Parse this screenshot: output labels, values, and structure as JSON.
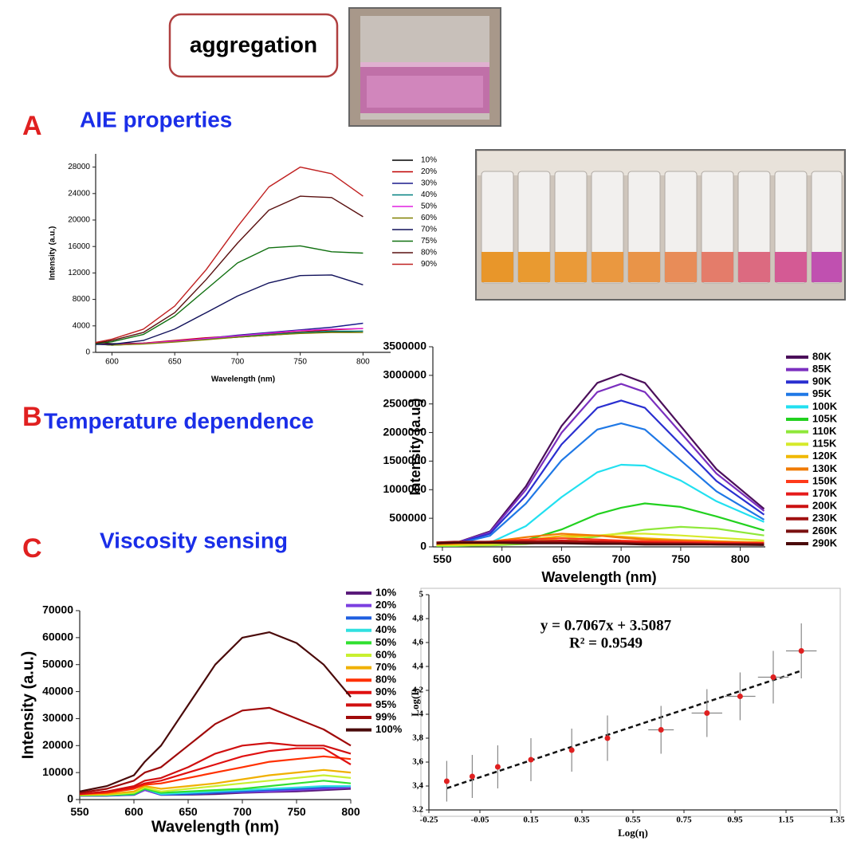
{
  "figure": {
    "badge": "aggregation",
    "panels": [
      {
        "letter": "A",
        "title": "AIE properties"
      },
      {
        "letter": "B",
        "title": "Temperature dependence"
      },
      {
        "letter": "C",
        "title": "Viscosity sensing"
      }
    ]
  },
  "chart_data": [
    {
      "type": "line",
      "xlabel": "Wavelength (nm)",
      "ylabel": "Intensity (a.u.)",
      "x": [
        587,
        600,
        625,
        650,
        675,
        700,
        725,
        750,
        775,
        800
      ],
      "xlim": [
        587,
        822
      ],
      "xticks": [
        600,
        650,
        700,
        750,
        800
      ],
      "ylim": [
        0,
        30000
      ],
      "yticks": [
        0,
        4000,
        8000,
        12000,
        16000,
        20000,
        24000,
        28000
      ],
      "series": [
        {
          "name": "10%",
          "color": "#000000",
          "values": [
            1500,
            1300,
            1400,
            1700,
            2000,
            2300,
            2600,
            2900,
            3100,
            3200
          ]
        },
        {
          "name": "20%",
          "color": "#c00000",
          "values": [
            1400,
            1200,
            1400,
            1800,
            2200,
            2500,
            2800,
            3100,
            3400,
            3600
          ]
        },
        {
          "name": "30%",
          "color": "#1a1a8c",
          "values": [
            1300,
            1100,
            1300,
            1700,
            2100,
            2600,
            3000,
            3400,
            3800,
            4400
          ]
        },
        {
          "name": "40%",
          "color": "#008080",
          "values": [
            1300,
            1100,
            1300,
            1600,
            2000,
            2400,
            2700,
            3000,
            3200,
            3200
          ]
        },
        {
          "name": "50%",
          "color": "#e020e0",
          "values": [
            1350,
            1150,
            1350,
            1700,
            2100,
            2500,
            2900,
            3300,
            3500,
            3600
          ]
        },
        {
          "name": "60%",
          "color": "#808000",
          "values": [
            1250,
            1100,
            1250,
            1550,
            1900,
            2300,
            2600,
            2850,
            3000,
            3000
          ]
        },
        {
          "name": "70%",
          "color": "#10105a",
          "values": [
            1200,
            1200,
            1800,
            3500,
            6000,
            8500,
            10500,
            11600,
            11700,
            10200
          ]
        },
        {
          "name": "75%",
          "color": "#107010",
          "values": [
            1300,
            1600,
            2700,
            5500,
            9500,
            13500,
            15800,
            16100,
            15200,
            15000
          ]
        },
        {
          "name": "80%",
          "color": "#5a1010",
          "values": [
            1400,
            1800,
            3000,
            6000,
            11000,
            16500,
            21500,
            23600,
            23400,
            20500
          ]
        },
        {
          "name": "90%",
          "color": "#c02020",
          "values": [
            1500,
            2000,
            3500,
            7000,
            12500,
            19000,
            25000,
            28000,
            27000,
            23600
          ]
        }
      ]
    },
    {
      "type": "line",
      "xlabel": "Wavelength (nm)",
      "ylabel": "Intensity (a.u.)",
      "x": [
        545,
        560,
        590,
        620,
        650,
        680,
        700,
        720,
        750,
        780,
        820
      ],
      "xlim": [
        542,
        821
      ],
      "xticks": [
        550,
        600,
        650,
        700,
        750,
        800
      ],
      "ylim": [
        0,
        3500000
      ],
      "yticks": [
        0,
        500000,
        1000000,
        1500000,
        2000000,
        2500000,
        3000000,
        3500000
      ],
      "series": [
        {
          "name": "80K",
          "color": "#4b0f5a",
          "values": [
            30000,
            60000,
            272000,
            1057000,
            2114000,
            2869000,
            3020000,
            2869000,
            2114000,
            1359000,
            664000
          ]
        },
        {
          "name": "85K",
          "color": "#7b2fbf",
          "values": [
            28000,
            57000,
            257000,
            998000,
            1995000,
            2708000,
            2850000,
            2708000,
            1995000,
            1283000,
            627000
          ]
        },
        {
          "name": "90K",
          "color": "#2a2fd0",
          "values": [
            26000,
            51000,
            230000,
            896000,
            1792000,
            2432000,
            2560000,
            2432000,
            1792000,
            1152000,
            563000
          ]
        },
        {
          "name": "95K",
          "color": "#1f78e6",
          "values": [
            22000,
            43000,
            194000,
            756000,
            1512000,
            2052000,
            2160000,
            2052000,
            1512000,
            972000,
            475000
          ]
        },
        {
          "name": "100K",
          "color": "#22e0f0",
          "values": [
            15000,
            15000,
            73000,
            363000,
            870000,
            1305000,
            1436000,
            1421000,
            1160000,
            798000,
            435000
          ]
        },
        {
          "name": "105K",
          "color": "#22d11f",
          "values": [
            15000,
            15000,
            30000,
            114000,
            304000,
            570000,
            684000,
            760000,
            699000,
            532000,
            289000
          ]
        },
        {
          "name": "110K",
          "color": "#8fe83a",
          "values": [
            20000,
            20000,
            25000,
            50000,
            100000,
            180000,
            240000,
            300000,
            350000,
            320000,
            200000
          ]
        },
        {
          "name": "115K",
          "color": "#d6ea2a",
          "values": [
            30000,
            30000,
            40000,
            80000,
            150000,
            200000,
            230000,
            230000,
            200000,
            160000,
            110000
          ]
        },
        {
          "name": "120K",
          "color": "#f0b800",
          "values": [
            40000,
            45000,
            60000,
            120000,
            190000,
            200000,
            180000,
            150000,
            120000,
            100000,
            80000
          ]
        },
        {
          "name": "130K",
          "color": "#f07a00",
          "values": [
            50000,
            60000,
            90000,
            170000,
            230000,
            200000,
            160000,
            130000,
            110000,
            90000,
            70000
          ]
        },
        {
          "name": "150K",
          "color": "#ff3a1a",
          "values": [
            60000,
            70000,
            90000,
            130000,
            150000,
            130000,
            110000,
            100000,
            90000,
            80000,
            70000
          ]
        },
        {
          "name": "170K",
          "color": "#e61a1a",
          "values": [
            60000,
            70000,
            80000,
            100000,
            110000,
            100000,
            90000,
            80000,
            70000,
            60000,
            60000
          ]
        },
        {
          "name": "200K",
          "color": "#cc1111",
          "values": [
            70000,
            80000,
            90000,
            100000,
            100000,
            90000,
            80000,
            70000,
            60000,
            60000,
            50000
          ]
        },
        {
          "name": "230K",
          "color": "#a01010",
          "values": [
            80000,
            90000,
            90000,
            90000,
            90000,
            80000,
            70000,
            60000,
            60000,
            50000,
            50000
          ]
        },
        {
          "name": "260K",
          "color": "#7a1010",
          "values": [
            70000,
            80000,
            80000,
            80000,
            70000,
            60000,
            60000,
            50000,
            50000,
            40000,
            40000
          ]
        },
        {
          "name": "290K",
          "color": "#4a0a0a",
          "values": [
            60000,
            70000,
            70000,
            60000,
            60000,
            50000,
            50000,
            40000,
            40000,
            40000,
            30000
          ]
        }
      ]
    },
    {
      "type": "line",
      "xlabel": "Wavelength (nm)",
      "ylabel": "Intensity (a.u.)",
      "x": [
        550,
        575,
        600,
        610,
        625,
        650,
        675,
        700,
        725,
        750,
        775,
        800
      ],
      "xlim": [
        550,
        800
      ],
      "xticks": [
        550,
        600,
        650,
        700,
        750,
        800
      ],
      "ylim": [
        0,
        70000
      ],
      "yticks": [
        0,
        10000,
        20000,
        30000,
        40000,
        50000,
        60000,
        70000
      ],
      "series": [
        {
          "name": "10%",
          "color": "#5a1a7a",
          "values": [
            1400,
            1400,
            1700,
            3500,
            1700,
            1800,
            2000,
            2500,
            2800,
            3000,
            3500,
            4000
          ]
        },
        {
          "name": "20%",
          "color": "#7b3fe0",
          "values": [
            1400,
            1500,
            1800,
            3500,
            1800,
            2000,
            2500,
            2800,
            3000,
            3500,
            4000,
            4500
          ]
        },
        {
          "name": "30%",
          "color": "#2060e0",
          "values": [
            1500,
            1500,
            1800,
            4000,
            1800,
            2000,
            2500,
            3000,
            3500,
            4000,
            4500,
            5000
          ]
        },
        {
          "name": "40%",
          "color": "#30e0e0",
          "values": [
            1500,
            1600,
            2000,
            4000,
            2000,
            2500,
            3000,
            3500,
            4000,
            4500,
            5000,
            5000
          ]
        },
        {
          "name": "50%",
          "color": "#30e030",
          "values": [
            1500,
            1700,
            2000,
            4000,
            2500,
            3000,
            3500,
            4000,
            5000,
            6000,
            7000,
            6000
          ]
        },
        {
          "name": "60%",
          "color": "#c8f030",
          "values": [
            1700,
            1800,
            2500,
            4500,
            3000,
            4000,
            5000,
            6000,
            7000,
            8000,
            9000,
            8000
          ]
        },
        {
          "name": "70%",
          "color": "#f0b000",
          "values": [
            1800,
            2000,
            3000,
            5000,
            4000,
            5000,
            6000,
            7500,
            9000,
            10000,
            11000,
            10000
          ]
        },
        {
          "name": "80%",
          "color": "#ff3000",
          "values": [
            2000,
            2500,
            4000,
            5500,
            6000,
            8000,
            10000,
            12000,
            14000,
            15000,
            16000,
            15000
          ]
        },
        {
          "name": "90%",
          "color": "#e01010",
          "values": [
            2000,
            3000,
            4500,
            6000,
            7000,
            10000,
            13000,
            16000,
            18000,
            19000,
            19000,
            13000
          ]
        },
        {
          "name": "95%",
          "color": "#d01010",
          "values": [
            2000,
            3000,
            5000,
            7000,
            8000,
            12000,
            17000,
            20000,
            21000,
            20000,
            20000,
            17000
          ]
        },
        {
          "name": "99%",
          "color": "#a00a0a",
          "values": [
            2500,
            4000,
            7000,
            10000,
            12000,
            20000,
            28000,
            33000,
            34000,
            30000,
            26000,
            20000
          ]
        },
        {
          "name": "100%",
          "color": "#4a0a0a",
          "values": [
            3000,
            5000,
            9000,
            14000,
            20000,
            35000,
            50000,
            60000,
            62000,
            58000,
            50000,
            38000
          ]
        }
      ]
    },
    {
      "type": "scatter",
      "xlabel": "Log(η)",
      "ylabel": "Log(I)",
      "annotations": [
        "y = 0.7067x + 3.5087",
        "R² = 0.9549"
      ],
      "trendline": {
        "slope": 0.7067,
        "intercept": 3.5087
      },
      "x": [
        -0.18,
        -0.08,
        0.02,
        0.15,
        0.31,
        0.45,
        0.66,
        0.84,
        0.97,
        1.1,
        1.21
      ],
      "values": [
        3.44,
        3.48,
        3.56,
        3.62,
        3.7,
        3.8,
        3.87,
        4.01,
        4.15,
        4.31,
        4.53
      ],
      "x_errors": [
        0,
        0,
        0,
        0,
        0,
        0,
        0.05,
        0.06,
        0.06,
        0.06,
        0.06
      ],
      "y_errors": [
        0.17,
        0.18,
        0.18,
        0.18,
        0.18,
        0.19,
        0.2,
        0.2,
        0.2,
        0.22,
        0.23
      ],
      "color": "#e02020",
      "xlim": [
        -0.25,
        1.35
      ],
      "xticks": [
        -0.25,
        -0.05,
        0.15,
        0.35,
        0.55,
        0.75,
        0.95,
        1.15,
        1.35
      ],
      "ylim": [
        3.2,
        5
      ],
      "yticks": [
        {
          "value": 3.2,
          "label": "3.2"
        },
        {
          "value": 3.4,
          "label": "3,4"
        },
        {
          "value": 3.6,
          "label": "3,6"
        },
        {
          "value": 3.8,
          "label": "3,8"
        },
        4,
        {
          "value": 4.2,
          "label": "4,2"
        },
        {
          "value": 4.4,
          "label": "4,4"
        },
        {
          "value": 4.6,
          "label": "4,6"
        },
        {
          "value": 4.8,
          "label": "4,8"
        },
        5
      ]
    }
  ]
}
